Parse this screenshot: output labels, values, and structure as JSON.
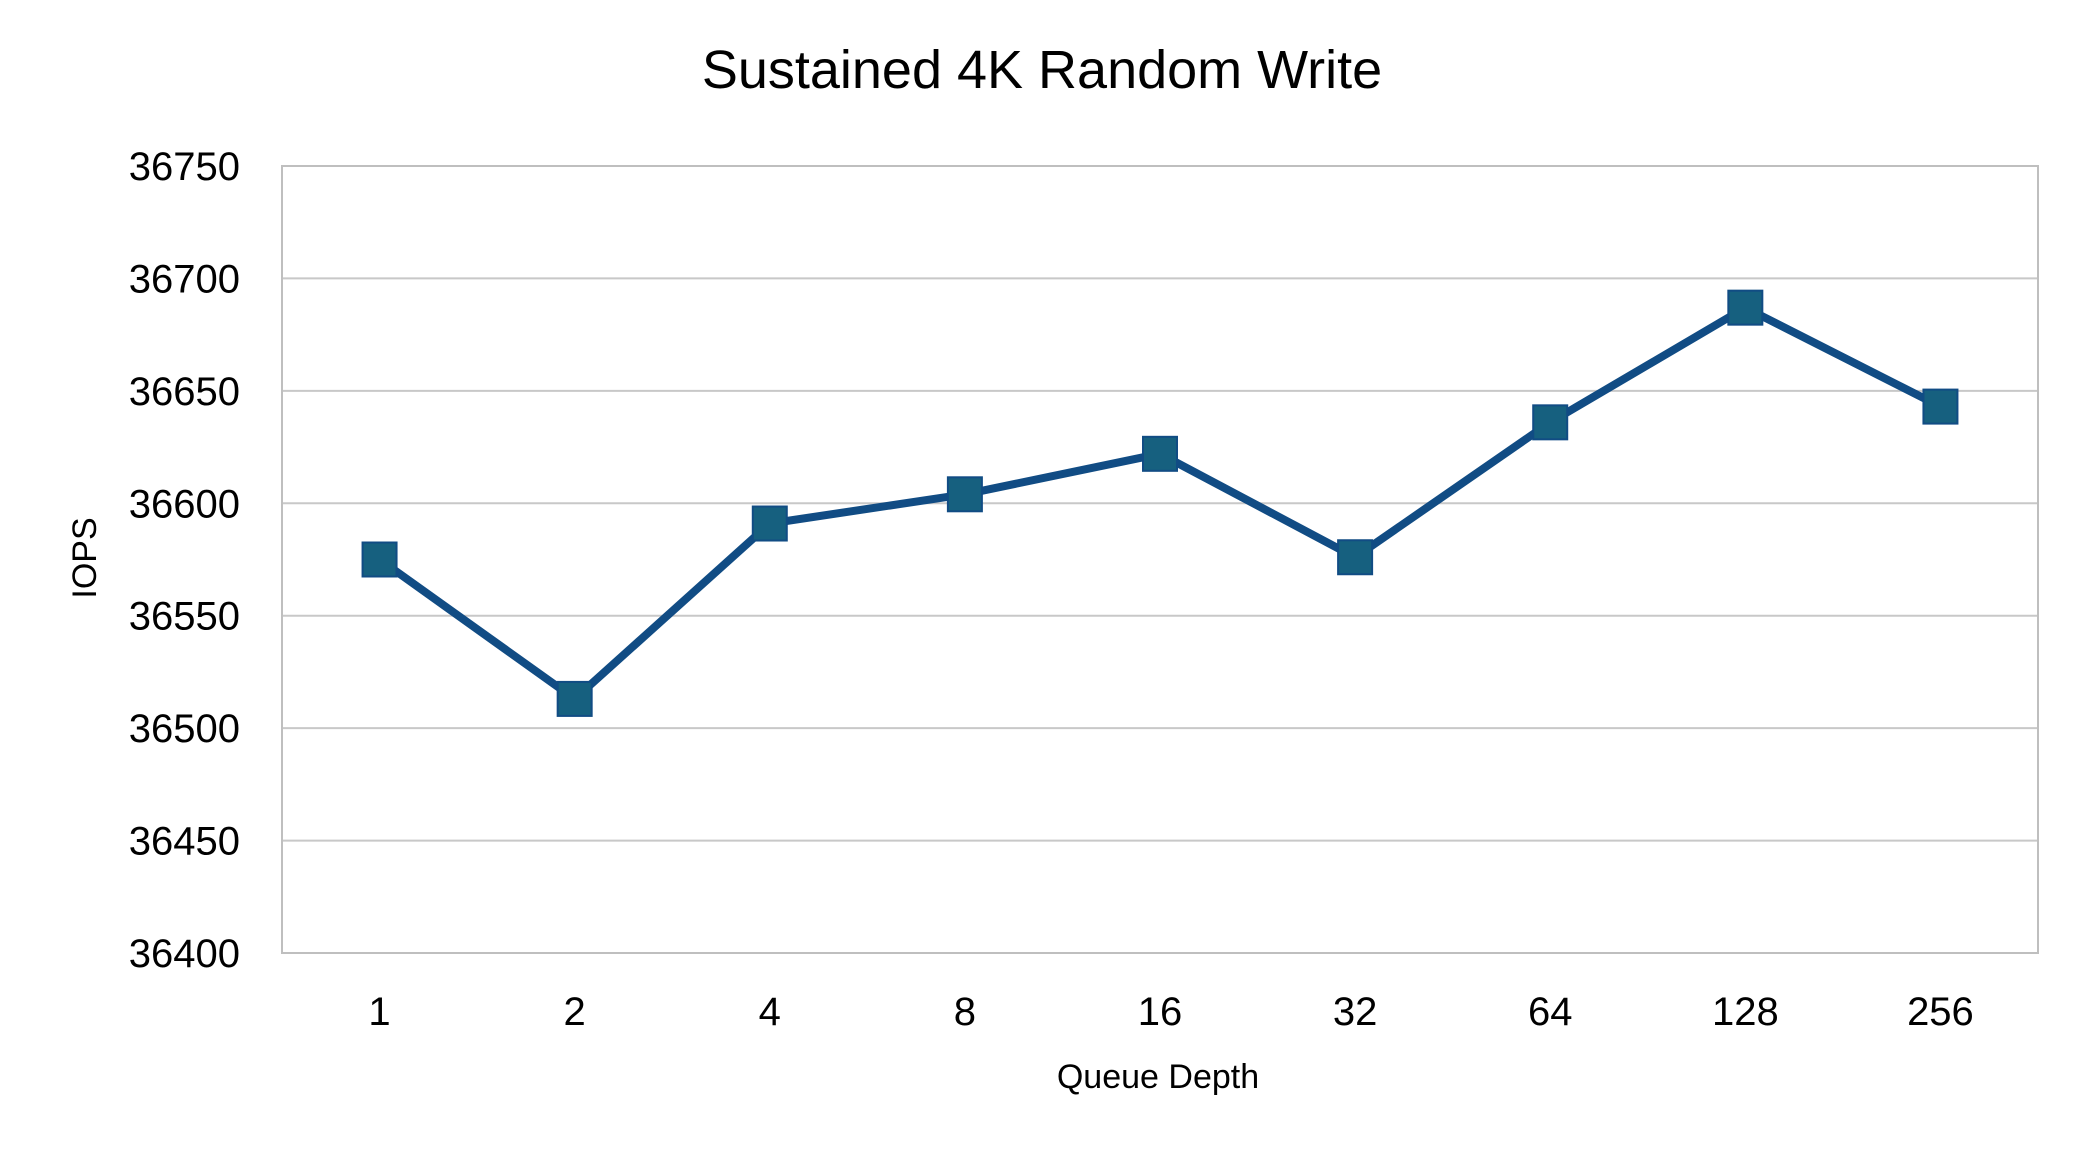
{
  "chart_data": {
    "type": "line",
    "title": "Sustained 4K Random Write",
    "xlabel": "Queue Depth",
    "ylabel": "IOPS",
    "categories": [
      "1",
      "2",
      "4",
      "8",
      "16",
      "32",
      "64",
      "128",
      "256"
    ],
    "series": [
      {
        "values": [
          36575,
          36513,
          36591,
          36604,
          36622,
          36576,
          36636,
          36687,
          36643
        ],
        "marker": "square"
      }
    ],
    "ylim": [
      36400,
      36750
    ],
    "yticks": [
      "36400",
      "36450",
      "36500",
      "36550",
      "36600",
      "36650",
      "36700",
      "36750"
    ],
    "grid": true,
    "legend": "none",
    "colors": {
      "line": "#114C84",
      "marker": "#16607F",
      "grid": "#C8C8C8",
      "frame": "#BFBFBF"
    }
  }
}
